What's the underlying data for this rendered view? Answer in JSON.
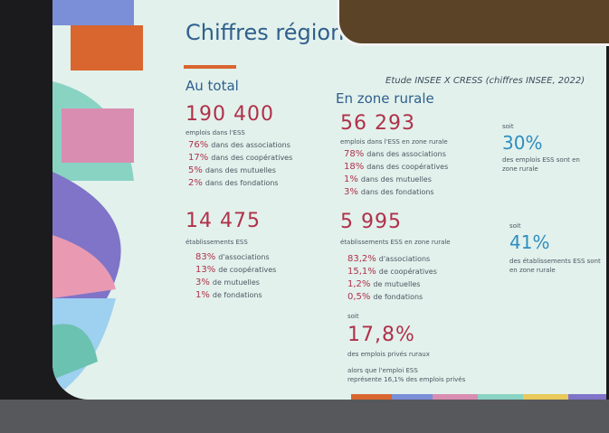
{
  "title": "Chiffres régionaux",
  "source": "Etude INSEE X CRESS (chiffres INSEE, 2022)",
  "total": {
    "heading": "Au total",
    "jobs": {
      "value": "190 400",
      "label": "emplois dans l'ESS",
      "items": [
        {
          "pct": "76%",
          "text": "dans des associations"
        },
        {
          "pct": "17%",
          "text": "dans des coopératives"
        },
        {
          "pct": "5%",
          "text": "dans des mutuelles"
        },
        {
          "pct": "2%",
          "text": "dans des fondations"
        }
      ]
    },
    "establishments": {
      "value": "14 475",
      "label": "établissements ESS",
      "items": [
        {
          "pct": "83%",
          "text": "d'associations"
        },
        {
          "pct": "13%",
          "text": "de coopératives"
        },
        {
          "pct": "3%",
          "text": "de mutuelles"
        },
        {
          "pct": "1%",
          "text": "de fondations"
        }
      ]
    }
  },
  "rural": {
    "heading": "En zone rurale",
    "jobs": {
      "value": "56 293",
      "label": "emplois dans l'ESS en zone rurale",
      "items": [
        {
          "pct": "78%",
          "text": "dans des associations"
        },
        {
          "pct": "18%",
          "text": "dans des coopératives"
        },
        {
          "pct": "1%",
          "text": "dans des mutuelles"
        },
        {
          "pct": "3%",
          "text": "dans des fondations"
        }
      ]
    },
    "jobs_share": {
      "soit": "soit",
      "value": "30%",
      "label": "des emplois ESS sont en zone rurale"
    },
    "establishments": {
      "value": "5 995",
      "label": "établissements ESS en zone rurale",
      "items": [
        {
          "pct": "83,2%",
          "text": "d'associations"
        },
        {
          "pct": "15,1%",
          "text": "de coopératives"
        },
        {
          "pct": "1,2%",
          "text": "de mutuelles"
        },
        {
          "pct": "0,5%",
          "text": "de fondations"
        }
      ]
    },
    "establishments_share": {
      "soit": "soit",
      "value": "41%",
      "label": "des établissements ESS sont en zone rurale"
    }
  },
  "private_share": {
    "soit": "soit",
    "value": "17,8%",
    "label": "des emplois privés ruraux",
    "note": [
      "alors que l'emploi ESS",
      "représente 16,1% des emplois privés"
    ]
  }
}
